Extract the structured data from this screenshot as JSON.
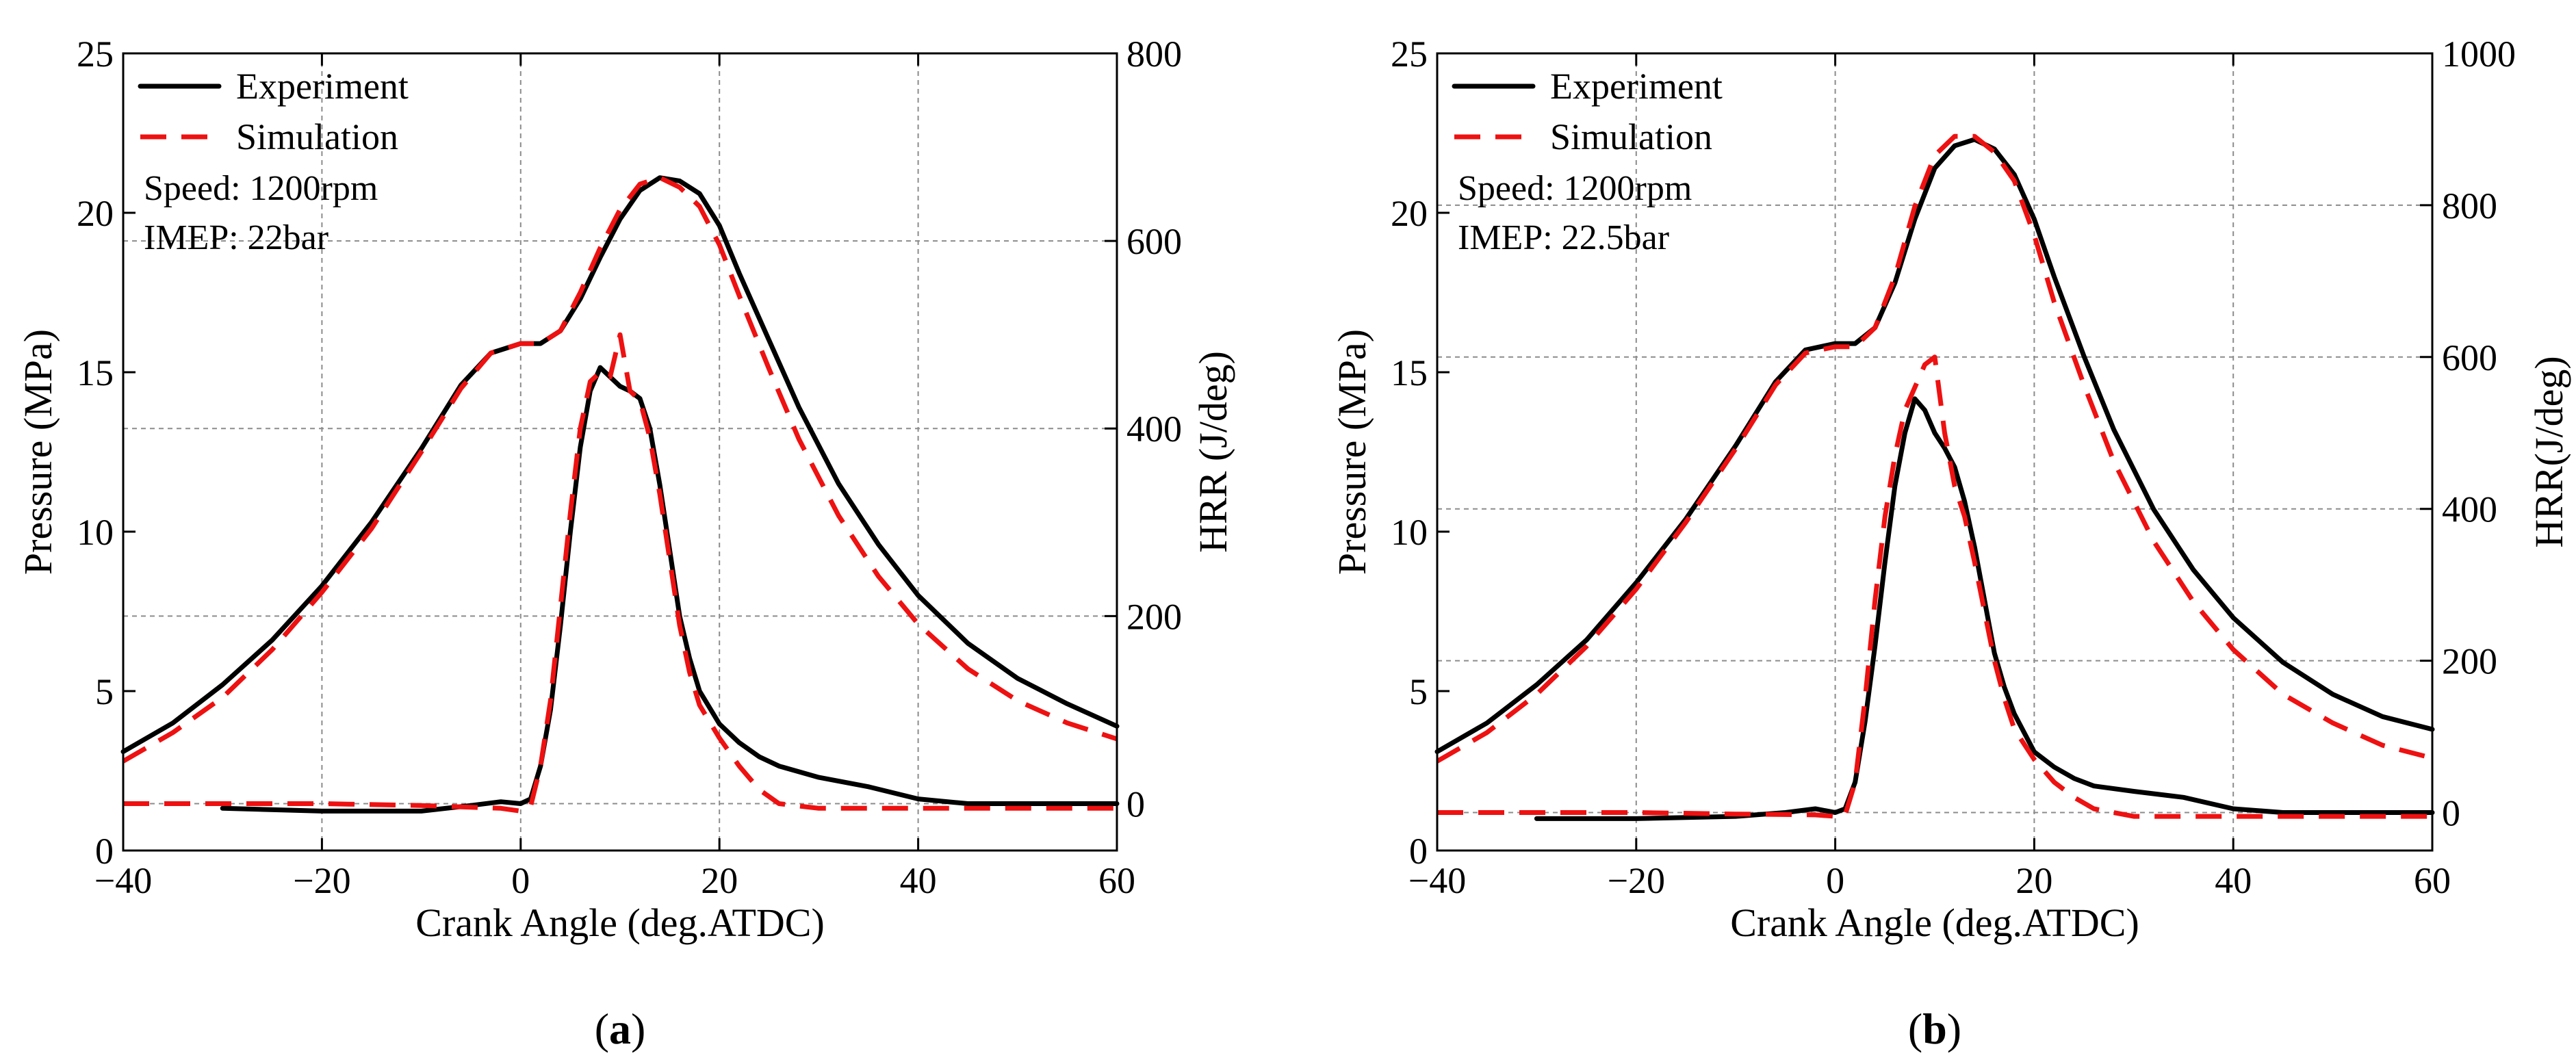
{
  "colors": {
    "experiment": "#000000",
    "simulation": "#ee1111",
    "grid": "#8c8c8c"
  },
  "chart_data": [
    {
      "panel_label": "a",
      "type": "line",
      "xlabel": "Crank Angle (deg.ATDC)",
      "ylabel": "Pressure (MPa)",
      "y2label": "HRR (J/deg)",
      "xlim": [
        -40,
        60
      ],
      "ylim": [
        0,
        25
      ],
      "y2lim": [
        -50,
        800
      ],
      "xticks": [
        -40,
        -20,
        0,
        20,
        40,
        60
      ],
      "xtick_labels": [
        "−40",
        "−20",
        "0",
        "20",
        "40",
        "60"
      ],
      "yticks": [
        0,
        5,
        10,
        15,
        20,
        25
      ],
      "y2ticks": [
        0,
        200,
        400,
        600,
        800
      ],
      "grid": true,
      "legend_position": "top-left",
      "legend": [
        {
          "label": "Experiment",
          "style": "solid",
          "color": "#000000"
        },
        {
          "label": "Simulation",
          "style": "dashed",
          "color": "#ee1111"
        }
      ],
      "annotations": [
        "Speed: 1200rpm",
        "IMEP: 22bar"
      ],
      "series": [
        {
          "name": "Experiment",
          "axis": "pressure",
          "style": "solid",
          "x": [
            -40,
            -35,
            -30,
            -25,
            -20,
            -15,
            -10,
            -6,
            -3,
            0,
            2,
            4,
            6,
            8,
            10,
            12,
            14,
            16,
            18,
            20,
            22,
            25,
            28,
            32,
            36,
            40,
            45,
            50,
            55,
            60
          ],
          "y": [
            3.1,
            4.0,
            5.2,
            6.6,
            8.3,
            10.3,
            12.6,
            14.6,
            15.6,
            15.9,
            15.9,
            16.3,
            17.3,
            18.6,
            19.8,
            20.7,
            21.1,
            21.0,
            20.6,
            19.6,
            18.1,
            16.0,
            13.9,
            11.5,
            9.6,
            8.0,
            6.5,
            5.4,
            4.6,
            3.9
          ]
        },
        {
          "name": "Simulation",
          "axis": "pressure",
          "style": "dashed",
          "x": [
            -40,
            -35,
            -30,
            -25,
            -20,
            -15,
            -10,
            -6,
            -3,
            0,
            2,
            4,
            6,
            8,
            10,
            12,
            14,
            16,
            18,
            20,
            22,
            25,
            28,
            32,
            36,
            40,
            45,
            50,
            55,
            60
          ],
          "y": [
            2.8,
            3.7,
            4.8,
            6.3,
            8.1,
            10.1,
            12.5,
            14.5,
            15.6,
            15.9,
            15.9,
            16.3,
            17.5,
            18.9,
            20.1,
            20.9,
            21.1,
            20.8,
            20.2,
            19.0,
            17.4,
            15.1,
            12.9,
            10.5,
            8.6,
            7.1,
            5.7,
            4.7,
            4.0,
            3.5
          ]
        },
        {
          "name": "Experiment",
          "axis": "hrr",
          "style": "solid",
          "x": [
            -30,
            -20,
            -10,
            -5,
            -2,
            0,
            1,
            2,
            3,
            4,
            5,
            6,
            7,
            8,
            9,
            10,
            11,
            12,
            13,
            14,
            15,
            16,
            17,
            18,
            20,
            22,
            24,
            26,
            30,
            35,
            40,
            45,
            50,
            55,
            60
          ],
          "y": [
            -5,
            -8,
            -8,
            -2,
            2,
            0,
            5,
            40,
            100,
            190,
            290,
            380,
            440,
            465,
            455,
            445,
            440,
            432,
            400,
            340,
            270,
            200,
            155,
            120,
            85,
            65,
            50,
            40,
            28,
            18,
            5,
            0,
            0,
            0,
            0
          ]
        },
        {
          "name": "Simulation",
          "axis": "hrr",
          "style": "dashed",
          "x": [
            -40,
            -30,
            -20,
            -10,
            -2,
            0,
            1,
            2,
            3,
            4,
            5,
            6,
            7,
            8,
            9,
            10,
            11,
            12,
            13,
            14,
            15,
            16,
            17,
            18,
            20,
            22,
            24,
            26,
            30,
            35,
            40,
            45,
            50,
            55,
            60
          ],
          "y": [
            0,
            0,
            0,
            -2,
            -5,
            -8,
            -3,
            40,
            110,
            210,
            310,
            400,
            450,
            460,
            455,
            500,
            440,
            430,
            390,
            330,
            260,
            190,
            140,
            105,
            70,
            40,
            15,
            0,
            -5,
            -5,
            -5,
            -5,
            -5,
            -5,
            -5
          ]
        }
      ]
    },
    {
      "panel_label": "b",
      "type": "line",
      "xlabel": "Crank Angle (deg.ATDC)",
      "ylabel": "Pressure (MPa)",
      "y2label": "HRR(J/deg)",
      "xlim": [
        -40,
        60
      ],
      "ylim": [
        0,
        25
      ],
      "y2lim": [
        -50,
        1000
      ],
      "xticks": [
        -40,
        -20,
        0,
        20,
        40,
        60
      ],
      "xtick_labels": [
        "−40",
        "−20",
        "0",
        "20",
        "40",
        "60"
      ],
      "yticks": [
        0,
        5,
        10,
        15,
        20,
        25
      ],
      "y2ticks": [
        0,
        200,
        400,
        600,
        800,
        1000
      ],
      "grid": true,
      "legend_position": "top-left",
      "legend": [
        {
          "label": "Experiment",
          "style": "solid",
          "color": "#000000"
        },
        {
          "label": "Simulation",
          "style": "dashed",
          "color": "#ee1111"
        }
      ],
      "annotations": [
        "Speed: 1200rpm",
        "IMEP: 22.5bar"
      ],
      "series": [
        {
          "name": "Experiment",
          "axis": "pressure",
          "style": "solid",
          "x": [
            -40,
            -35,
            -30,
            -25,
            -20,
            -15,
            -10,
            -6,
            -3,
            0,
            2,
            4,
            6,
            8,
            10,
            12,
            14,
            16,
            18,
            20,
            22,
            25,
            28,
            32,
            36,
            40,
            45,
            50,
            55,
            60
          ],
          "y": [
            3.1,
            4.0,
            5.2,
            6.6,
            8.4,
            10.4,
            12.7,
            14.7,
            15.7,
            15.9,
            15.9,
            16.4,
            17.8,
            19.8,
            21.4,
            22.1,
            22.3,
            22.0,
            21.2,
            19.8,
            18.0,
            15.5,
            13.2,
            10.7,
            8.8,
            7.3,
            5.9,
            4.9,
            4.2,
            3.8
          ]
        },
        {
          "name": "Simulation",
          "axis": "pressure",
          "style": "dashed",
          "x": [
            -40,
            -35,
            -30,
            -25,
            -20,
            -15,
            -10,
            -6,
            -3,
            0,
            2,
            4,
            6,
            8,
            10,
            12,
            14,
            16,
            18,
            20,
            22,
            25,
            28,
            32,
            36,
            40,
            45,
            50,
            55,
            60
          ],
          "y": [
            2.8,
            3.7,
            4.9,
            6.4,
            8.2,
            10.3,
            12.6,
            14.6,
            15.6,
            15.8,
            15.8,
            16.4,
            18.0,
            20.2,
            21.8,
            22.4,
            22.4,
            21.9,
            21.0,
            19.3,
            17.2,
            14.6,
            12.2,
            9.7,
            7.8,
            6.3,
            4.9,
            4.0,
            3.3,
            2.9
          ]
        },
        {
          "name": "Experiment",
          "axis": "hrr",
          "style": "solid",
          "x": [
            -30,
            -20,
            -10,
            -5,
            -2,
            0,
            1,
            2,
            3,
            4,
            5,
            6,
            7,
            8,
            9,
            10,
            11,
            12,
            13,
            14,
            15,
            16,
            17,
            18,
            20,
            22,
            24,
            26,
            30,
            35,
            40,
            45,
            50,
            55,
            60
          ],
          "y": [
            -8,
            -8,
            -5,
            0,
            5,
            0,
            5,
            40,
            120,
            220,
            330,
            430,
            500,
            545,
            530,
            500,
            480,
            455,
            410,
            350,
            280,
            210,
            165,
            130,
            80,
            60,
            45,
            35,
            28,
            20,
            5,
            0,
            0,
            0,
            0
          ]
        },
        {
          "name": "Simulation",
          "axis": "hrr",
          "style": "dashed",
          "x": [
            -40,
            -30,
            -20,
            -10,
            -2,
            0,
            1,
            2,
            3,
            4,
            5,
            6,
            7,
            8,
            9,
            10,
            11,
            12,
            13,
            14,
            15,
            16,
            17,
            18,
            20,
            22,
            24,
            26,
            30,
            35,
            40,
            45,
            50,
            55,
            60
          ],
          "y": [
            0,
            0,
            0,
            -2,
            -3,
            -5,
            -3,
            40,
            150,
            280,
            390,
            470,
            530,
            560,
            590,
            600,
            500,
            430,
            390,
            330,
            265,
            200,
            150,
            110,
            70,
            40,
            20,
            5,
            -5,
            -5,
            -5,
            -5,
            -5,
            -5,
            -5
          ]
        }
      ]
    }
  ]
}
